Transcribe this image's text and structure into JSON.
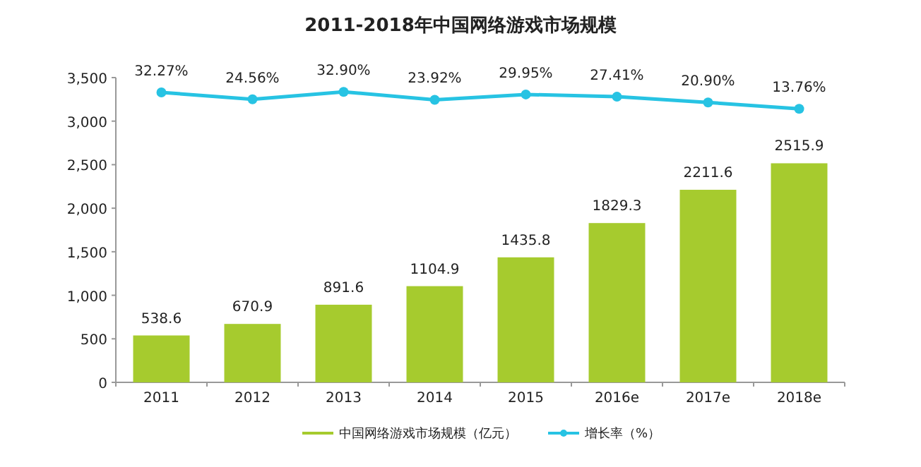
{
  "chart_data": {
    "type": "bar",
    "title": "2011-2018年中国网络游戏市场规模",
    "categories": [
      "2011",
      "2012",
      "2013",
      "2014",
      "2015",
      "2016e",
      "2017e",
      "2018e"
    ],
    "series": [
      {
        "name": "中国网络游戏市场规模（亿元）",
        "color": "#a6cb2e",
        "values": [
          538.6,
          670.9,
          891.6,
          1104.9,
          1435.8,
          1829.3,
          2211.6,
          2515.9
        ],
        "value_labels": [
          "538.6",
          "670.9",
          "891.6",
          "1104.9",
          "1435.8",
          "1829.3",
          "2211.6",
          "2515.9"
        ]
      },
      {
        "name": "增长率（%）",
        "type": "line",
        "axis": "y2",
        "color": "#27c3e3",
        "marker": "circle",
        "values": [
          32.27,
          24.56,
          32.9,
          23.92,
          29.95,
          27.41,
          20.9,
          13.76
        ],
        "value_labels": [
          "32.27%",
          "24.56%",
          "32.90%",
          "23.92%",
          "29.95%",
          "27.41%",
          "20.90%",
          "13.76%"
        ]
      }
    ],
    "ylim": [
      0,
      3500
    ],
    "yticks": [
      {
        "value": 0,
        "label": "0"
      },
      {
        "value": 500,
        "label": "500"
      },
      {
        "value": 1000,
        "label": "1,000"
      },
      {
        "value": 1500,
        "label": "1,500"
      },
      {
        "value": 2000,
        "label": "2,000"
      },
      {
        "value": 2500,
        "label": "2,500"
      },
      {
        "value": 3000,
        "label": "3,000"
      },
      {
        "value": 3500,
        "label": "3,500"
      }
    ],
    "y2lim": [
      -295,
      49
    ],
    "legend": "bottom",
    "grid": false
  }
}
